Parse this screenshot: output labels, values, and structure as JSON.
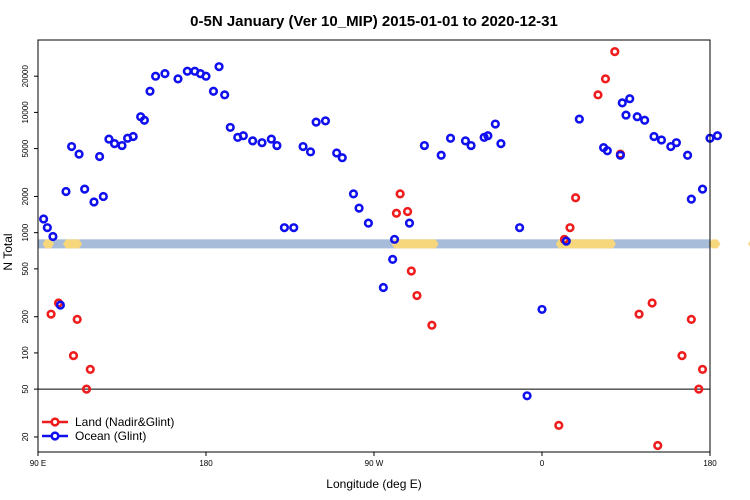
{
  "chart_data": {
    "type": "scatter",
    "title": "0-5N January (Ver 10_MIP)   2015-01-01 to 2020-12-31",
    "xlabel": "Longitude (deg E)",
    "ylabel": "N Total",
    "y_scale": "log",
    "xlim": [
      90,
      450
    ],
    "ylim": [
      15,
      40000
    ],
    "x_ticks": [
      {
        "value": 90,
        "label": "90 E"
      },
      {
        "value": 180,
        "label": "180"
      },
      {
        "value": 270,
        "label": "90 W"
      },
      {
        "value": 360,
        "label": "0"
      },
      {
        "value": 450,
        "label": "90 E"
      }
    ],
    "x_ticks_unlabeled": [
      450
    ],
    "x_end_label": "180",
    "y_ticks": [
      20,
      50,
      100,
      200,
      500,
      1000,
      2000,
      5000,
      10000,
      20000
    ],
    "reference_line": {
      "y": 50,
      "color": "#000000"
    },
    "land_band": {
      "y_range": [
        740,
        880
      ],
      "ocean_color": "#a7bcd9",
      "land_color": "#f6d77c",
      "land_segments": [
        [
          94,
          97
        ],
        [
          105,
          112
        ],
        [
          281,
          303
        ],
        [
          369,
          398
        ],
        [
          451,
          454
        ],
        [
          472,
          475
        ]
      ]
    },
    "legend": {
      "position": "bottom-left"
    },
    "series": [
      {
        "name": "Land (Nadir&Glint)",
        "color": "#ee1c1c",
        "x": [
          97,
          101,
          109,
          111,
          116,
          118,
          282,
          284,
          288,
          290,
          293,
          301,
          369,
          372,
          375,
          378,
          390,
          394,
          399,
          402,
          412,
          419,
          422,
          435,
          440,
          444,
          446
        ],
        "y": [
          210,
          260,
          95,
          190,
          50,
          73,
          1450,
          2100,
          1500,
          480,
          300,
          170,
          25,
          880,
          1100,
          1950,
          14000,
          19000,
          32000,
          4500,
          210,
          260,
          17,
          95,
          190,
          50,
          73
        ]
      },
      {
        "name": "Ocean (Glint)",
        "color": "#1010ee",
        "x": [
          93,
          95,
          98,
          102,
          105,
          108,
          112,
          115,
          120,
          123,
          125,
          128,
          131,
          135,
          138,
          141,
          145,
          147,
          150,
          153,
          158,
          165,
          170,
          174,
          177,
          180,
          184,
          187,
          190,
          193,
          197,
          200,
          205,
          210,
          215,
          218,
          222,
          227,
          232,
          236,
          239,
          244,
          250,
          253,
          259,
          262,
          267,
          275,
          280,
          281,
          289,
          297,
          306,
          311,
          319,
          322,
          329,
          331,
          335,
          338,
          348,
          352,
          360,
          373,
          380,
          393,
          395,
          402,
          403,
          405,
          407,
          411,
          415,
          420,
          424,
          429,
          432,
          438,
          440,
          446,
          450,
          454
        ],
        "y": [
          1300,
          1100,
          930,
          250,
          2200,
          5200,
          4500,
          2300,
          1800,
          4300,
          2000,
          6000,
          5500,
          5300,
          6100,
          6300,
          9200,
          8600,
          15000,
          20000,
          21000,
          19000,
          22000,
          22000,
          21000,
          20000,
          15000,
          24000,
          14000,
          7500,
          6200,
          6400,
          5800,
          5600,
          6000,
          5300,
          1100,
          1100,
          5200,
          4700,
          8300,
          8500,
          4600,
          4200,
          2100,
          1600,
          1200,
          350,
          600,
          880,
          1200,
          5300,
          4400,
          6100,
          5800,
          5300,
          6200,
          6400,
          8000,
          5500,
          1100,
          44,
          230,
          850,
          8800,
          5100,
          4800,
          4400,
          12000,
          9500,
          13000,
          9200,
          8600,
          6300,
          5900,
          5200,
          5600,
          4400,
          1900,
          2300,
          6100,
          6400
        ]
      }
    ]
  }
}
